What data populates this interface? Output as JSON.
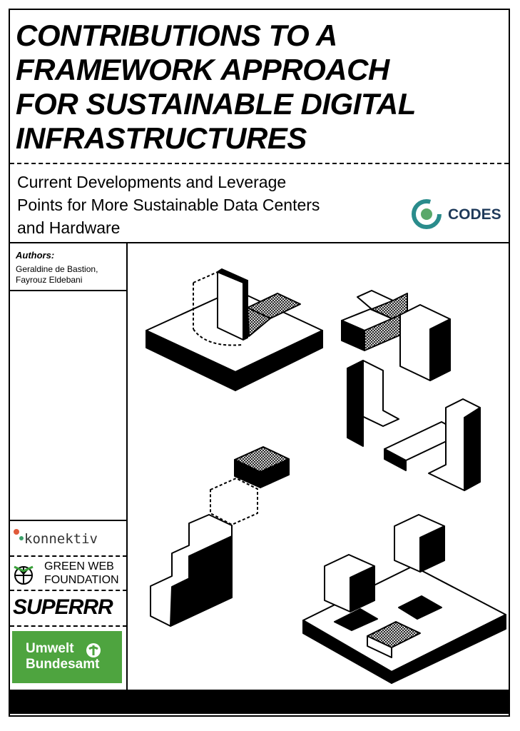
{
  "header": {
    "title_lines": [
      "CONTRIBUTIONS TO A",
      "FRAMEWORK APPROACH",
      "FOR SUSTAINABLE DIGITAL",
      "INFRASTRUCTURES"
    ],
    "subtitle_lines": [
      "Current Developments and Leverage",
      "Points for More Sustainable Data Centers",
      "and Hardware"
    ],
    "logo": "CODES"
  },
  "authors": {
    "label": "Authors:",
    "names": [
      "Geraldine de Bastion,",
      "Fayrouz Eldebani"
    ]
  },
  "partners": {
    "konnektiv": "konnektiv",
    "green_web": [
      "GREEN WEB",
      "FOUNDATION"
    ],
    "superrr": "SUPERRR",
    "uba": [
      "Umwelt",
      "Bundesamt"
    ]
  }
}
